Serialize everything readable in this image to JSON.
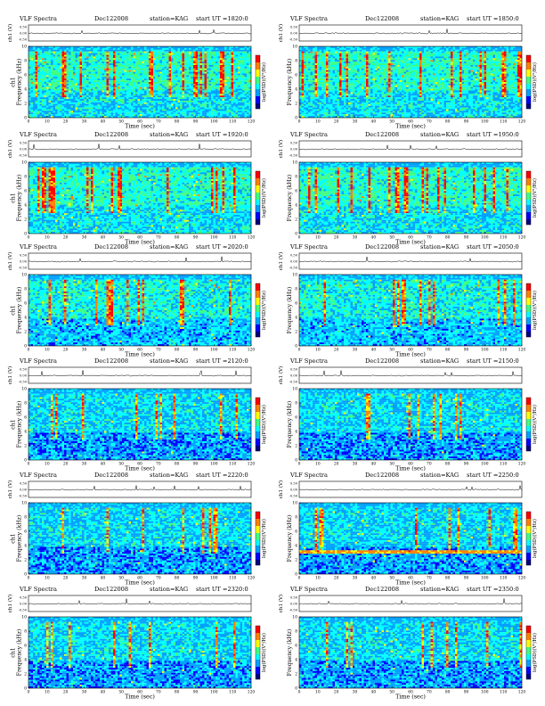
{
  "figure_title_parts": {
    "instrument": "VLF Spectra",
    "date": "Dec122008",
    "station": "station=KAG",
    "start_prefix": "start  UT  ="
  },
  "chart_data": [
    {
      "type": "heatmap",
      "start_ut": "1820:0",
      "xlabel": "Time  (sec)",
      "ylabel_top": "ch1 (V)",
      "ylabel_main": "ch1\nFrequency  (kHz)",
      "colorbar_label": "log(PSD)(V²/Hz)",
      "x_ticks": [
        0,
        10,
        20,
        30,
        40,
        50,
        60,
        70,
        80,
        90,
        100,
        110,
        120
      ],
      "y_ticks": [
        0,
        2,
        4,
        6,
        8,
        10
      ],
      "top_ticks": [
        "0.50",
        "0.00",
        "-0.50"
      ],
      "xlim": [
        0,
        120
      ],
      "ylim": [
        0,
        10
      ],
      "pattern": "active"
    },
    {
      "type": "heatmap",
      "start_ut": "1850:0",
      "xlabel": "Time  (sec)",
      "ylabel_top": "ch1 (V)",
      "ylabel_main": "Frequency  (kHz)",
      "colorbar_label": "log(PSD)(V²/Hz)",
      "x_ticks": [
        0,
        10,
        20,
        30,
        40,
        50,
        60,
        70,
        80,
        90,
        100,
        110,
        120
      ],
      "y_ticks": [
        0,
        2,
        4,
        6,
        8,
        10
      ],
      "top_ticks": [
        "0.50",
        "0.00",
        "-0.50"
      ],
      "xlim": [
        0,
        120
      ],
      "ylim": [
        0,
        10
      ],
      "pattern": "active"
    },
    {
      "type": "heatmap",
      "start_ut": "1920:0",
      "xlabel": "Time  (sec)",
      "ylabel_top": "ch1 (V)",
      "ylabel_main": "ch1\nFrequency  (kHz)",
      "colorbar_label": "log(PSD)(V²/Hz)",
      "x_ticks": [
        0,
        10,
        20,
        30,
        40,
        50,
        60,
        70,
        80,
        90,
        100,
        110,
        120
      ],
      "y_ticks": [
        0,
        2,
        4,
        6,
        8,
        10
      ],
      "top_ticks": [
        "0.50",
        "0.00",
        "-0.50"
      ],
      "xlim": [
        0,
        120
      ],
      "ylim": [
        0,
        10
      ],
      "pattern": "active"
    },
    {
      "type": "heatmap",
      "start_ut": "1950:0",
      "xlabel": "Time  (sec)",
      "ylabel_top": "ch1 (V)",
      "ylabel_main": "Frequency  (kHz)",
      "colorbar_label": "log(PSD)(V²/Hz)",
      "x_ticks": [
        0,
        10,
        20,
        30,
        40,
        50,
        60,
        70,
        80,
        90,
        100,
        110,
        120
      ],
      "y_ticks": [
        0,
        2,
        4,
        6,
        8,
        10
      ],
      "top_ticks": [
        "0.50",
        "0.00",
        "-0.50"
      ],
      "xlim": [
        0,
        120
      ],
      "ylim": [
        0,
        10
      ],
      "pattern": "active"
    },
    {
      "type": "heatmap",
      "start_ut": "2020:0",
      "xlabel": "Time  (sec)",
      "ylabel_top": "ch1 (V)",
      "ylabel_main": "ch1\nFrequency  (kHz)",
      "colorbar_label": "log(PSD)(V²/Hz)",
      "x_ticks": [
        0,
        10,
        20,
        30,
        40,
        50,
        60,
        70,
        80,
        90,
        100,
        110,
        120
      ],
      "y_ticks": [
        0,
        2,
        4,
        6,
        8,
        10
      ],
      "top_ticks": [
        "0.50",
        "0.00",
        "-0.50"
      ],
      "xlim": [
        0,
        120
      ],
      "ylim": [
        0,
        10
      ],
      "pattern": "sparse"
    },
    {
      "type": "heatmap",
      "start_ut": "2050:0",
      "xlabel": "Time  (sec)",
      "ylabel_top": "ch1 (V)",
      "ylabel_main": "Frequency  (kHz)",
      "colorbar_label": "log(PSD)(V²/Hz)",
      "x_ticks": [
        0,
        10,
        20,
        30,
        40,
        50,
        60,
        70,
        80,
        90,
        100,
        110,
        120
      ],
      "y_ticks": [
        0,
        2,
        4,
        6,
        8,
        10
      ],
      "top_ticks": [
        "0.50",
        "0.00",
        "-0.50"
      ],
      "xlim": [
        0,
        120
      ],
      "ylim": [
        0,
        10
      ],
      "pattern": "sparse"
    },
    {
      "type": "heatmap",
      "start_ut": "2120:0",
      "xlabel": "Time  (sec)",
      "ylabel_top": "ch1 (V)",
      "ylabel_main": "ch1\nFrequency  (kHz)",
      "colorbar_label": "log(PSD)(V²/Hz)",
      "x_ticks": [
        0,
        10,
        20,
        30,
        40,
        50,
        60,
        70,
        80,
        90,
        100,
        110,
        120
      ],
      "y_ticks": [
        0,
        2,
        4,
        6,
        8,
        10
      ],
      "top_ticks": [
        "0.50",
        "0.00",
        "-0.50"
      ],
      "xlim": [
        0,
        120
      ],
      "ylim": [
        0,
        10
      ],
      "pattern": "quiet"
    },
    {
      "type": "heatmap",
      "start_ut": "2150:0",
      "xlabel": "Time  (sec)",
      "ylabel_top": "ch1 (V)",
      "ylabel_main": "Frequency  (kHz)",
      "colorbar_label": "log(PSD)(V²/Hz)",
      "x_ticks": [
        0,
        10,
        20,
        30,
        40,
        50,
        60,
        70,
        80,
        90,
        100,
        110,
        120
      ],
      "y_ticks": [
        0,
        2,
        4,
        6,
        8,
        10
      ],
      "top_ticks": [
        "0.50",
        "0.00",
        "-0.50"
      ],
      "xlim": [
        0,
        120
      ],
      "ylim": [
        0,
        10
      ],
      "pattern": "quiet"
    },
    {
      "type": "heatmap",
      "start_ut": "2220:0",
      "xlabel": "Time  (sec)",
      "ylabel_top": "ch1 (V)",
      "ylabel_main": "ch1\nFrequency  (kHz)",
      "colorbar_label": "log(PSD)(V²/Hz)",
      "x_ticks": [
        0,
        10,
        20,
        30,
        40,
        50,
        60,
        70,
        80,
        90,
        100,
        110,
        120
      ],
      "y_ticks": [
        0,
        2,
        4,
        6,
        8,
        10
      ],
      "top_ticks": [
        "0.50",
        "0.00",
        "-0.50"
      ],
      "xlim": [
        0,
        120
      ],
      "ylim": [
        0,
        10
      ],
      "pattern": "quiet"
    },
    {
      "type": "heatmap",
      "start_ut": "2250:0",
      "xlabel": "Time  (sec)",
      "ylabel_top": "ch1 (V)",
      "ylabel_main": "Frequency  (kHz)",
      "colorbar_label": "log(PSD)(V²/Hz)",
      "x_ticks": [
        0,
        10,
        20,
        30,
        40,
        50,
        60,
        70,
        80,
        90,
        100,
        110,
        120
      ],
      "y_ticks": [
        0,
        2,
        4,
        6,
        8,
        10
      ],
      "top_ticks": [
        "0.50",
        "0.00",
        "-0.50"
      ],
      "xlim": [
        0,
        120
      ],
      "ylim": [
        0,
        10
      ],
      "pattern": "band"
    },
    {
      "type": "heatmap",
      "start_ut": "2320:0",
      "xlabel": "Time  (sec)",
      "ylabel_top": "ch1 (V)",
      "ylabel_main": "ch1\nFrequency  (kHz)",
      "colorbar_label": "log(PSD)(V²/Hz)",
      "x_ticks": [
        0,
        10,
        20,
        30,
        40,
        50,
        60,
        70,
        80,
        90,
        100,
        110,
        120
      ],
      "y_ticks": [
        0,
        2,
        4,
        6,
        8,
        10
      ],
      "top_ticks": [
        "0.50",
        "0.00",
        "-0.50"
      ],
      "xlim": [
        0,
        120
      ],
      "ylim": [
        0,
        10
      ],
      "pattern": "quiet"
    },
    {
      "type": "heatmap",
      "start_ut": "2350:0",
      "xlabel": "Time  (sec)",
      "ylabel_top": "ch1 (V)",
      "ylabel_main": "Frequency  (kHz)",
      "colorbar_label": "log(PSD)(V²/Hz)",
      "x_ticks": [
        0,
        10,
        20,
        30,
        40,
        50,
        60,
        70,
        80,
        90,
        100,
        110,
        120
      ],
      "y_ticks": [
        0,
        2,
        4,
        6,
        8,
        10
      ],
      "top_ticks": [
        "0.50",
        "0.00",
        "-0.50"
      ],
      "xlim": [
        0,
        120
      ],
      "ylim": [
        0,
        10
      ],
      "pattern": "quiet"
    }
  ],
  "colors": {
    "colormap": [
      "#000080",
      "#0000ff",
      "#00a0ff",
      "#00ffff",
      "#40ff80",
      "#ffff00",
      "#ff8000",
      "#ff0000",
      "#800000"
    ],
    "waveform": "#000000"
  }
}
